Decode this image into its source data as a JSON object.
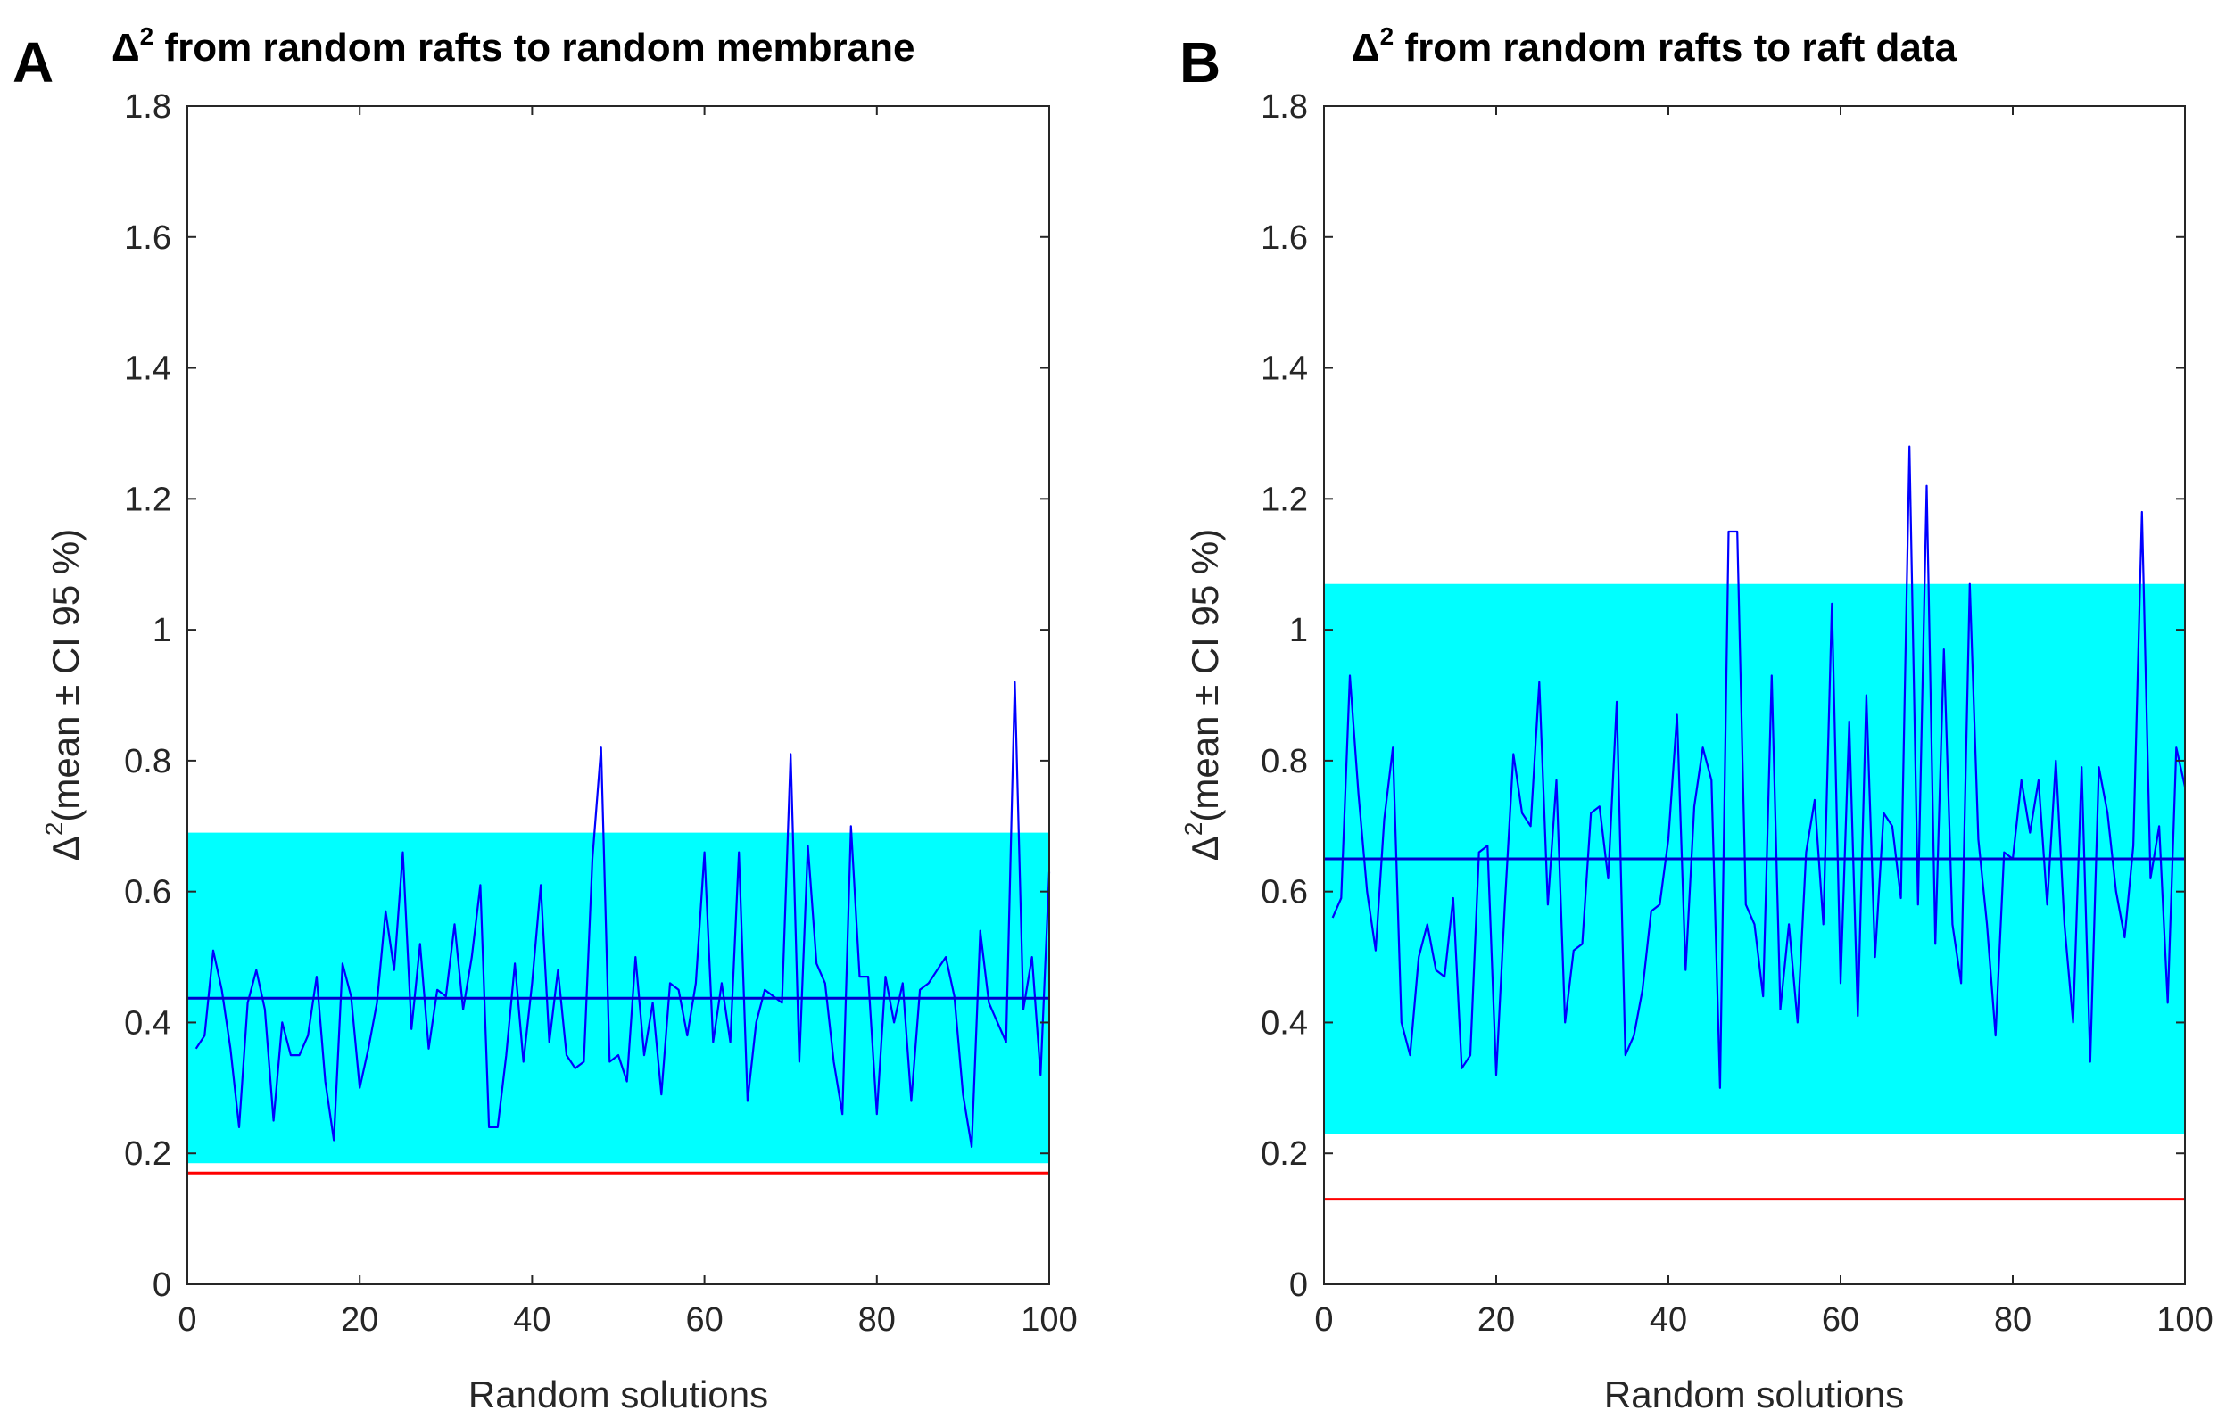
{
  "colors": {
    "ci_band": "#00FFFF",
    "series_line": "#0000FF",
    "mean_line": "#0000CC",
    "reference_line": "#FF0000",
    "axes": "#262626"
  },
  "chart_data": [
    {
      "type": "line",
      "panel": "A",
      "title_main": "Δ",
      "title_sup": "2",
      "title_rest": " from random rafts to random membrane",
      "xlabel": "Random solutions",
      "ylabel_main": "Δ",
      "ylabel_sup": "2",
      "ylabel_rest": "(mean ± CI 95 %)",
      "xlim": [
        0,
        100
      ],
      "ylim": [
        0,
        1.8
      ],
      "xticks": [
        0,
        20,
        40,
        60,
        80,
        100
      ],
      "xtick_labels": [
        "0",
        "20",
        "40",
        "60",
        "80",
        "100"
      ],
      "yticks": [
        0,
        0.2,
        0.4,
        0.6,
        0.8,
        1,
        1.2,
        1.4,
        1.6,
        1.8
      ],
      "ytick_labels": [
        "0",
        "0.2",
        "0.4",
        "0.6",
        "0.8",
        "1",
        "1.2",
        "1.4",
        "1.6",
        "1.8"
      ],
      "ci_band": [
        0.185,
        0.69
      ],
      "mean": 0.437,
      "reference": 0.17,
      "series": {
        "name": "random solutions",
        "x": [
          1,
          2,
          3,
          4,
          5,
          6,
          7,
          8,
          9,
          10,
          11,
          12,
          13,
          14,
          15,
          16,
          17,
          18,
          19,
          20,
          21,
          22,
          23,
          24,
          25,
          26,
          27,
          28,
          29,
          30,
          31,
          32,
          33,
          34,
          35,
          36,
          37,
          38,
          39,
          40,
          41,
          42,
          43,
          44,
          45,
          46,
          47,
          48,
          49,
          50,
          51,
          52,
          53,
          54,
          55,
          56,
          57,
          58,
          59,
          60,
          61,
          62,
          63,
          64,
          65,
          66,
          67,
          68,
          69,
          70,
          71,
          72,
          73,
          74,
          75,
          76,
          77,
          78,
          79,
          80,
          81,
          82,
          83,
          84,
          85,
          86,
          87,
          88,
          89,
          90,
          91,
          92,
          93,
          94,
          95,
          96,
          97,
          98,
          99,
          100
        ],
        "values": [
          0.36,
          0.38,
          0.51,
          0.45,
          0.36,
          0.24,
          0.43,
          0.48,
          0.42,
          0.25,
          0.4,
          0.35,
          0.35,
          0.38,
          0.47,
          0.31,
          0.22,
          0.49,
          0.44,
          0.3,
          0.36,
          0.43,
          0.57,
          0.48,
          0.66,
          0.39,
          0.52,
          0.36,
          0.45,
          0.44,
          0.55,
          0.42,
          0.5,
          0.61,
          0.24,
          0.24,
          0.35,
          0.49,
          0.34,
          0.46,
          0.61,
          0.37,
          0.48,
          0.35,
          0.33,
          0.34,
          0.65,
          0.82,
          0.34,
          0.35,
          0.31,
          0.5,
          0.35,
          0.43,
          0.29,
          0.46,
          0.45,
          0.38,
          0.46,
          0.66,
          0.37,
          0.46,
          0.37,
          0.66,
          0.28,
          0.4,
          0.45,
          0.44,
          0.43,
          0.81,
          0.34,
          0.67,
          0.49,
          0.46,
          0.34,
          0.26,
          0.7,
          0.47,
          0.47,
          0.26,
          0.47,
          0.4,
          0.46,
          0.28,
          0.45,
          0.46,
          0.48,
          0.5,
          0.44,
          0.29,
          0.21,
          0.54,
          0.43,
          0.4,
          0.37,
          0.92,
          0.42,
          0.5,
          0.32,
          0.63
        ]
      }
    },
    {
      "type": "line",
      "panel": "B",
      "title_main": "Δ",
      "title_sup": "2",
      "title_rest": " from random rafts to raft data",
      "xlabel": "Random solutions",
      "ylabel_main": "Δ",
      "ylabel_sup": "2",
      "ylabel_rest": "(mean ± CI 95 %)",
      "xlim": [
        0,
        100
      ],
      "ylim": [
        0,
        1.8
      ],
      "xticks": [
        0,
        20,
        40,
        60,
        80,
        100
      ],
      "xtick_labels": [
        "0",
        "20",
        "40",
        "60",
        "80",
        "100"
      ],
      "yticks": [
        0,
        0.2,
        0.4,
        0.6,
        0.8,
        1,
        1.2,
        1.4,
        1.6,
        1.8
      ],
      "ytick_labels": [
        "0",
        "0.2",
        "0.4",
        "0.6",
        "0.8",
        "1",
        "1.2",
        "1.4",
        "1.6",
        "1.8"
      ],
      "ci_band": [
        0.23,
        1.07
      ],
      "mean": 0.65,
      "reference": 0.13,
      "series": {
        "name": "random solutions",
        "x": [
          1,
          2,
          3,
          4,
          5,
          6,
          7,
          8,
          9,
          10,
          11,
          12,
          13,
          14,
          15,
          16,
          17,
          18,
          19,
          20,
          21,
          22,
          23,
          24,
          25,
          26,
          27,
          28,
          29,
          30,
          31,
          32,
          33,
          34,
          35,
          36,
          37,
          38,
          39,
          40,
          41,
          42,
          43,
          44,
          45,
          46,
          47,
          48,
          49,
          50,
          51,
          52,
          53,
          54,
          55,
          56,
          57,
          58,
          59,
          60,
          61,
          62,
          63,
          64,
          65,
          66,
          67,
          68,
          69,
          70,
          71,
          72,
          73,
          74,
          75,
          76,
          77,
          78,
          79,
          80,
          81,
          82,
          83,
          84,
          85,
          86,
          87,
          88,
          89,
          90,
          91,
          92,
          93,
          94,
          95,
          96,
          97,
          98,
          99,
          100
        ],
        "values": [
          0.56,
          0.59,
          0.93,
          0.75,
          0.6,
          0.51,
          0.71,
          0.82,
          0.4,
          0.35,
          0.5,
          0.55,
          0.48,
          0.47,
          0.59,
          0.33,
          0.35,
          0.66,
          0.67,
          0.32,
          0.58,
          0.81,
          0.72,
          0.7,
          0.92,
          0.58,
          0.77,
          0.4,
          0.51,
          0.52,
          0.72,
          0.73,
          0.62,
          0.89,
          0.35,
          0.38,
          0.45,
          0.57,
          0.58,
          0.68,
          0.87,
          0.48,
          0.73,
          0.82,
          0.77,
          0.3,
          1.15,
          1.15,
          0.58,
          0.55,
          0.44,
          0.93,
          0.42,
          0.55,
          0.4,
          0.66,
          0.74,
          0.55,
          1.04,
          0.46,
          0.86,
          0.41,
          0.9,
          0.5,
          0.72,
          0.7,
          0.59,
          1.28,
          0.58,
          1.22,
          0.52,
          0.97,
          0.55,
          0.46,
          1.07,
          0.68,
          0.55,
          0.38,
          0.66,
          0.65,
          0.77,
          0.69,
          0.77,
          0.58,
          0.8,
          0.55,
          0.4,
          0.79,
          0.34,
          0.79,
          0.72,
          0.6,
          0.53,
          0.67,
          1.18,
          0.62,
          0.7,
          0.43,
          0.82,
          0.76
        ]
      }
    }
  ]
}
